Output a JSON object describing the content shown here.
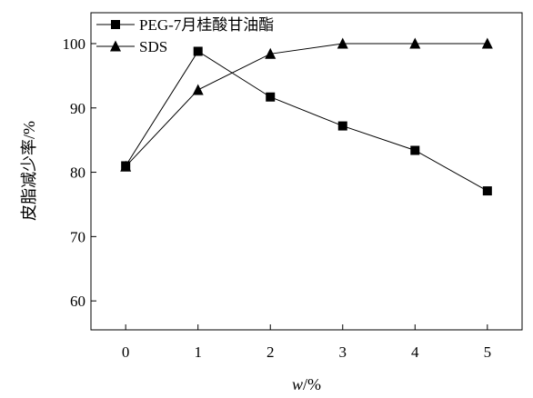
{
  "chart_data": {
    "type": "line",
    "title": "",
    "xlabel": "w/%",
    "xlabel_italic": "w",
    "xlabel_unit": "/%",
    "ylabel": "皮脂减少率/%",
    "x": [
      0,
      1,
      2,
      3,
      4,
      5
    ],
    "x_ticks": [
      "0",
      "1",
      "2",
      "3",
      "4",
      "5"
    ],
    "y_ticks": [
      "60",
      "70",
      "80",
      "90",
      "100"
    ],
    "xlim": [
      -0.48,
      5.48
    ],
    "ylim": [
      55.5,
      104.8
    ],
    "grid": false,
    "legend_position": "top-left",
    "series": [
      {
        "name": "PEG-7月桂酸甘油酯",
        "marker": "square",
        "color": "#000000",
        "values": [
          81.0,
          98.8,
          91.7,
          87.2,
          83.4,
          77.1
        ]
      },
      {
        "name": "SDS",
        "marker": "triangle",
        "color": "#000000",
        "values": [
          80.9,
          92.8,
          98.4,
          100.0,
          100.0,
          100.0
        ]
      }
    ]
  }
}
